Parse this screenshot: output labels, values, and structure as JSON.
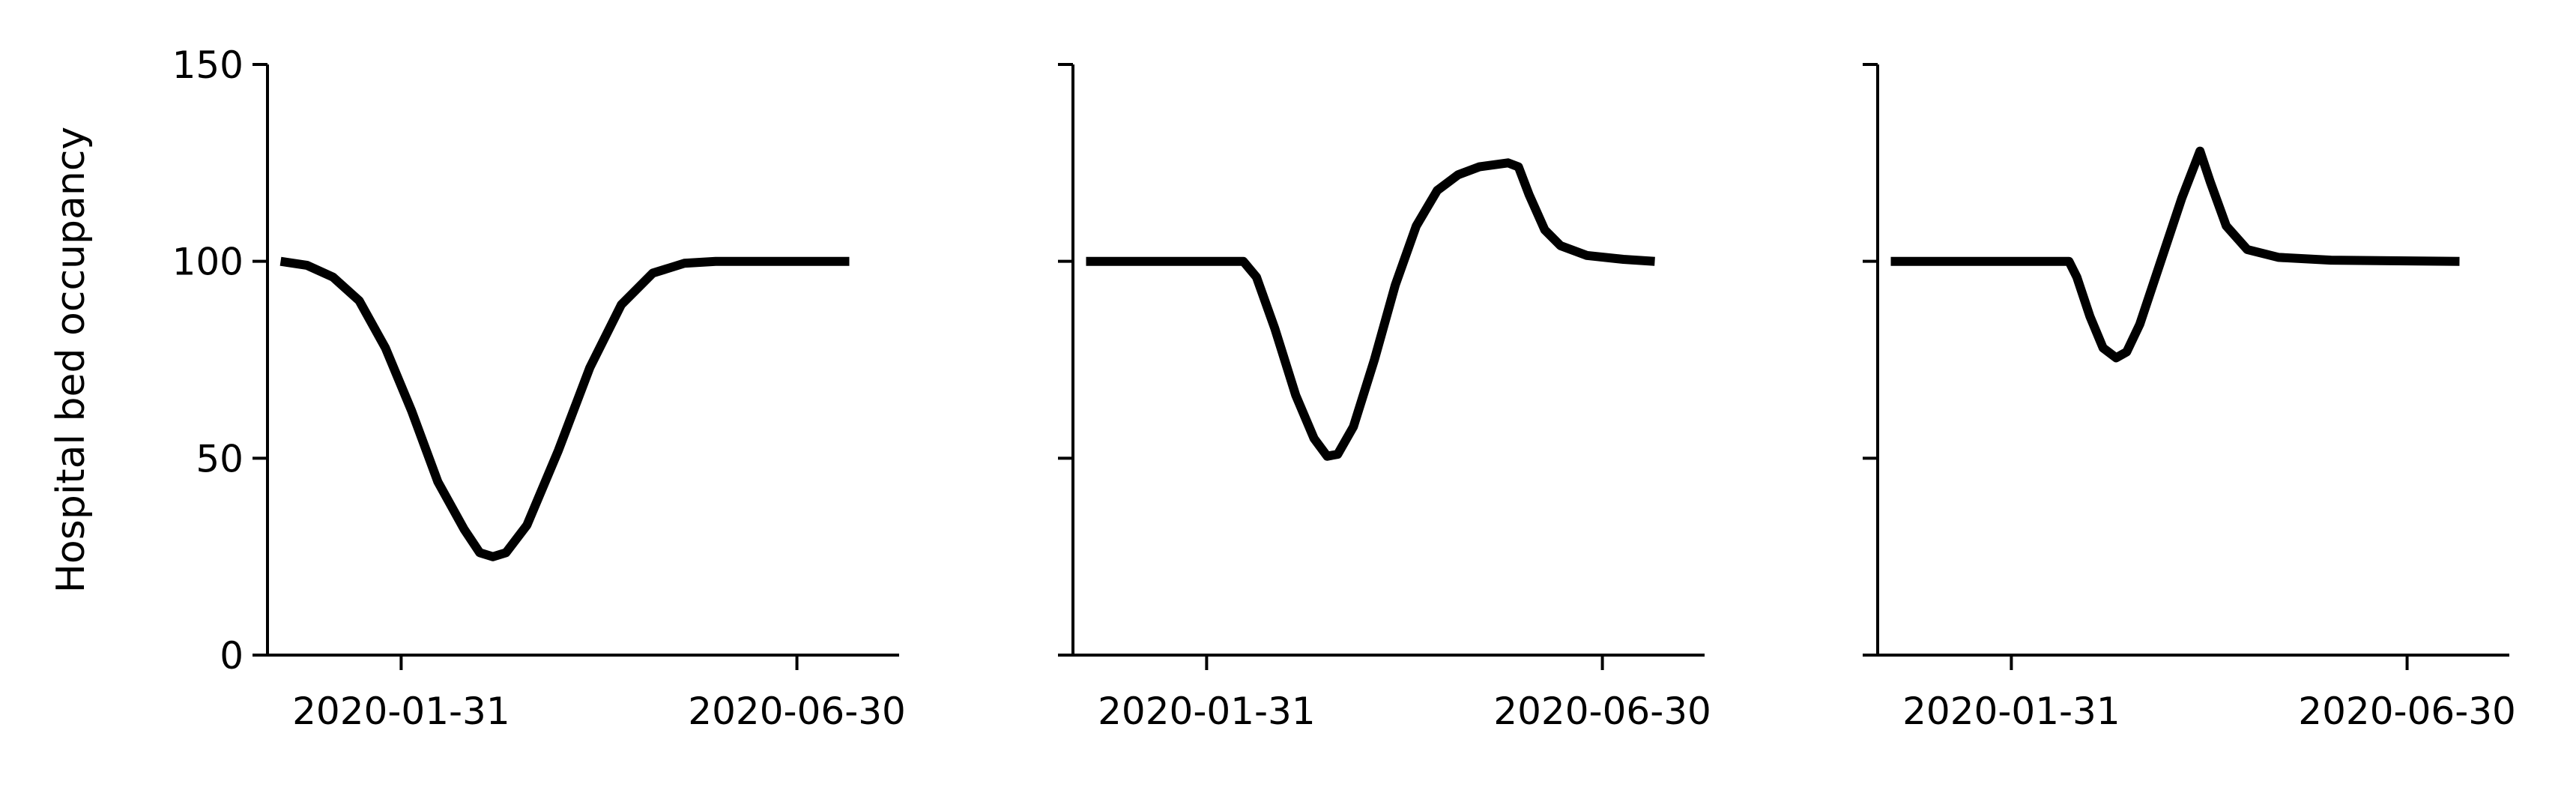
{
  "figure": {
    "ylabel": "Hospital bed occupancy"
  },
  "chart_data": [
    {
      "type": "line",
      "title": "",
      "xlabel": "",
      "ylabel": "Hospital bed occupancy",
      "ylim": [
        0,
        150
      ],
      "yticks": [
        0,
        50,
        100,
        150
      ],
      "ytick_labels": [
        "0",
        "50",
        "100",
        "150"
      ],
      "xlim": [
        "2019-12-11",
        "2020-08-08"
      ],
      "xticks": [
        "2020-01-31",
        "2020-06-30"
      ],
      "xtick_labels": [
        "2020-01-31",
        "2020-06-30"
      ],
      "grid": false,
      "series": [
        {
          "color": "#000000",
          "points": [
            [
              "2019-12-16",
              100
            ],
            [
              "2019-12-26",
              99
            ],
            [
              "2020-01-05",
              96
            ],
            [
              "2020-01-15",
              90
            ],
            [
              "2020-01-25",
              78
            ],
            [
              "2020-02-04",
              62
            ],
            [
              "2020-02-14",
              44
            ],
            [
              "2020-02-24",
              32
            ],
            [
              "2020-03-01",
              26
            ],
            [
              "2020-03-06",
              25
            ],
            [
              "2020-03-11",
              26
            ],
            [
              "2020-03-19",
              33
            ],
            [
              "2020-03-31",
              52
            ],
            [
              "2020-04-12",
              73
            ],
            [
              "2020-04-24",
              89
            ],
            [
              "2020-05-06",
              97
            ],
            [
              "2020-05-18",
              99.5
            ],
            [
              "2020-05-30",
              100
            ],
            [
              "2020-06-30",
              100
            ],
            [
              "2020-07-20",
              100
            ]
          ]
        }
      ]
    },
    {
      "type": "line",
      "title": "",
      "xlabel": "",
      "ylabel": "",
      "ylim": [
        0,
        150
      ],
      "yticks": [
        0,
        50,
        100,
        150
      ],
      "ytick_labels": [],
      "xlim": [
        "2019-12-11",
        "2020-08-08"
      ],
      "xticks": [
        "2020-01-31",
        "2020-06-30"
      ],
      "xtick_labels": [
        "2020-01-31",
        "2020-06-30"
      ],
      "grid": false,
      "series": [
        {
          "color": "#000000",
          "points": [
            [
              "2019-12-16",
              100
            ],
            [
              "2020-01-31",
              100
            ],
            [
              "2020-02-14",
              100
            ],
            [
              "2020-02-19",
              96
            ],
            [
              "2020-02-26",
              83
            ],
            [
              "2020-03-05",
              66
            ],
            [
              "2020-03-12",
              55
            ],
            [
              "2020-03-17",
              50.5
            ],
            [
              "2020-03-21",
              51
            ],
            [
              "2020-03-27",
              58
            ],
            [
              "2020-04-04",
              75
            ],
            [
              "2020-04-12",
              94
            ],
            [
              "2020-04-20",
              109
            ],
            [
              "2020-04-28",
              118
            ],
            [
              "2020-05-06",
              122
            ],
            [
              "2020-05-14",
              124
            ],
            [
              "2020-05-25",
              125
            ],
            [
              "2020-05-29",
              124
            ],
            [
              "2020-06-02",
              117
            ],
            [
              "2020-06-08",
              108
            ],
            [
              "2020-06-14",
              104
            ],
            [
              "2020-06-24",
              101.5
            ],
            [
              "2020-07-08",
              100.5
            ],
            [
              "2020-07-20",
              100
            ]
          ]
        }
      ]
    },
    {
      "type": "line",
      "title": "",
      "xlabel": "",
      "ylabel": "",
      "ylim": [
        0,
        150
      ],
      "yticks": [
        0,
        50,
        100,
        150
      ],
      "ytick_labels": [],
      "xlim": [
        "2019-12-11",
        "2020-08-08"
      ],
      "xticks": [
        "2020-01-31",
        "2020-06-30"
      ],
      "xtick_labels": [
        "2020-01-31",
        "2020-06-30"
      ],
      "grid": false,
      "series": [
        {
          "color": "#000000",
          "points": [
            [
              "2019-12-16",
              100
            ],
            [
              "2020-01-31",
              100
            ],
            [
              "2020-02-22",
              100
            ],
            [
              "2020-02-25",
              96
            ],
            [
              "2020-03-01",
              86
            ],
            [
              "2020-03-06",
              78
            ],
            [
              "2020-03-11",
              75.5
            ],
            [
              "2020-03-15",
              77
            ],
            [
              "2020-03-20",
              84
            ],
            [
              "2020-03-28",
              100
            ],
            [
              "2020-04-05",
              116
            ],
            [
              "2020-04-12",
              128
            ],
            [
              "2020-04-16",
              120
            ],
            [
              "2020-04-22",
              109
            ],
            [
              "2020-04-30",
              103
            ],
            [
              "2020-05-12",
              101
            ],
            [
              "2020-06-01",
              100.3
            ],
            [
              "2020-07-20",
              100
            ]
          ]
        }
      ]
    }
  ]
}
